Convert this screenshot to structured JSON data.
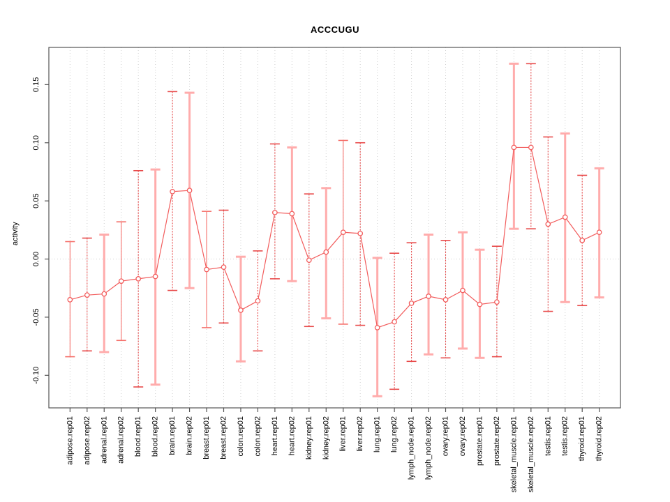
{
  "chart_data": {
    "type": "line",
    "title": "ACCCUGU",
    "xlabel": "",
    "ylabel": "activity",
    "ylim": [
      -0.128,
      0.182
    ],
    "yticks": [
      0.15,
      0.1,
      0.05,
      0.0,
      -0.05,
      -0.1
    ],
    "ytick_labels": [
      "0.15",
      "0.10",
      "0.05",
      "0.00",
      "-0.05",
      "-0.10"
    ],
    "grid": "dotted vertical gridline at every category; dotted horizontal line at y=0",
    "legend_position": "none",
    "marker": "open-circle",
    "colors": {
      "series": "#f25c5c",
      "error_bar_dashed": "#e84a4a",
      "error_bar_solid": "#f5706b",
      "error_bar_thick": "#ffacac",
      "grid": "#cfcfcf",
      "axis": "#555555",
      "text": "#000000"
    },
    "categories": [
      "adipose.rep01",
      "adipose.rep02",
      "adrenal.rep01",
      "adrenal.rep02",
      "blood.rep01",
      "blood.rep02",
      "brain.rep01",
      "brain.rep02",
      "breast.rep01",
      "breast.rep02",
      "colon.rep01",
      "colon.rep02",
      "heart.rep01",
      "heart.rep02",
      "kidney.rep01",
      "kidney.rep02",
      "liver.rep01",
      "liver.rep02",
      "lung.rep01",
      "lung.rep02",
      "lymph_node.rep01",
      "lymph_node.rep02",
      "ovary.rep01",
      "ovary.rep02",
      "prostate.rep01",
      "prostate.rep02",
      "skeletal_muscle.rep01",
      "skeletal_muscle.rep02",
      "testis.rep01",
      "testis.rep02",
      "thyroid.rep01",
      "thyroid.rep02"
    ],
    "series": [
      {
        "name": "activity",
        "values": [
          -0.035,
          -0.031,
          -0.03,
          -0.019,
          -0.017,
          -0.015,
          0.058,
          0.059,
          -0.009,
          -0.007,
          -0.044,
          -0.036,
          0.04,
          0.039,
          -0.001,
          0.006,
          0.023,
          0.022,
          -0.059,
          -0.054,
          -0.038,
          -0.032,
          -0.035,
          -0.027,
          -0.039,
          -0.037,
          0.096,
          0.096,
          0.03,
          0.036,
          0.016,
          0.023
        ],
        "error_high": [
          0.015,
          0.018,
          0.021,
          0.032,
          0.076,
          0.077,
          0.144,
          0.143,
          0.041,
          0.042,
          0.002,
          0.007,
          0.099,
          0.096,
          0.056,
          0.061,
          0.102,
          0.1,
          0.001,
          0.005,
          0.014,
          0.021,
          0.016,
          0.023,
          0.008,
          0.011,
          0.168,
          0.168,
          0.105,
          0.108,
          0.072,
          0.078
        ],
        "error_low": [
          -0.084,
          -0.079,
          -0.08,
          -0.07,
          -0.11,
          -0.108,
          -0.027,
          -0.025,
          -0.059,
          -0.055,
          -0.088,
          -0.079,
          -0.017,
          -0.019,
          -0.058,
          -0.051,
          -0.056,
          -0.057,
          -0.118,
          -0.112,
          -0.088,
          -0.082,
          -0.085,
          -0.077,
          -0.085,
          -0.084,
          0.026,
          0.026,
          -0.045,
          -0.037,
          -0.04,
          -0.033
        ],
        "error_bar_styles": [
          "solid",
          "dashed",
          "thick",
          "solid",
          "dashed",
          "thick",
          "dashed",
          "thick",
          "solid",
          "dashed",
          "thick",
          "dashed",
          "dashed",
          "thick",
          "dashed",
          "thick",
          "solid",
          "dashed",
          "thick",
          "dashed",
          "dashed",
          "thick",
          "dashed",
          "thick",
          "thick",
          "dashed",
          "thick",
          "dashed",
          "dashed",
          "thick",
          "dashed",
          "thick"
        ]
      }
    ]
  }
}
